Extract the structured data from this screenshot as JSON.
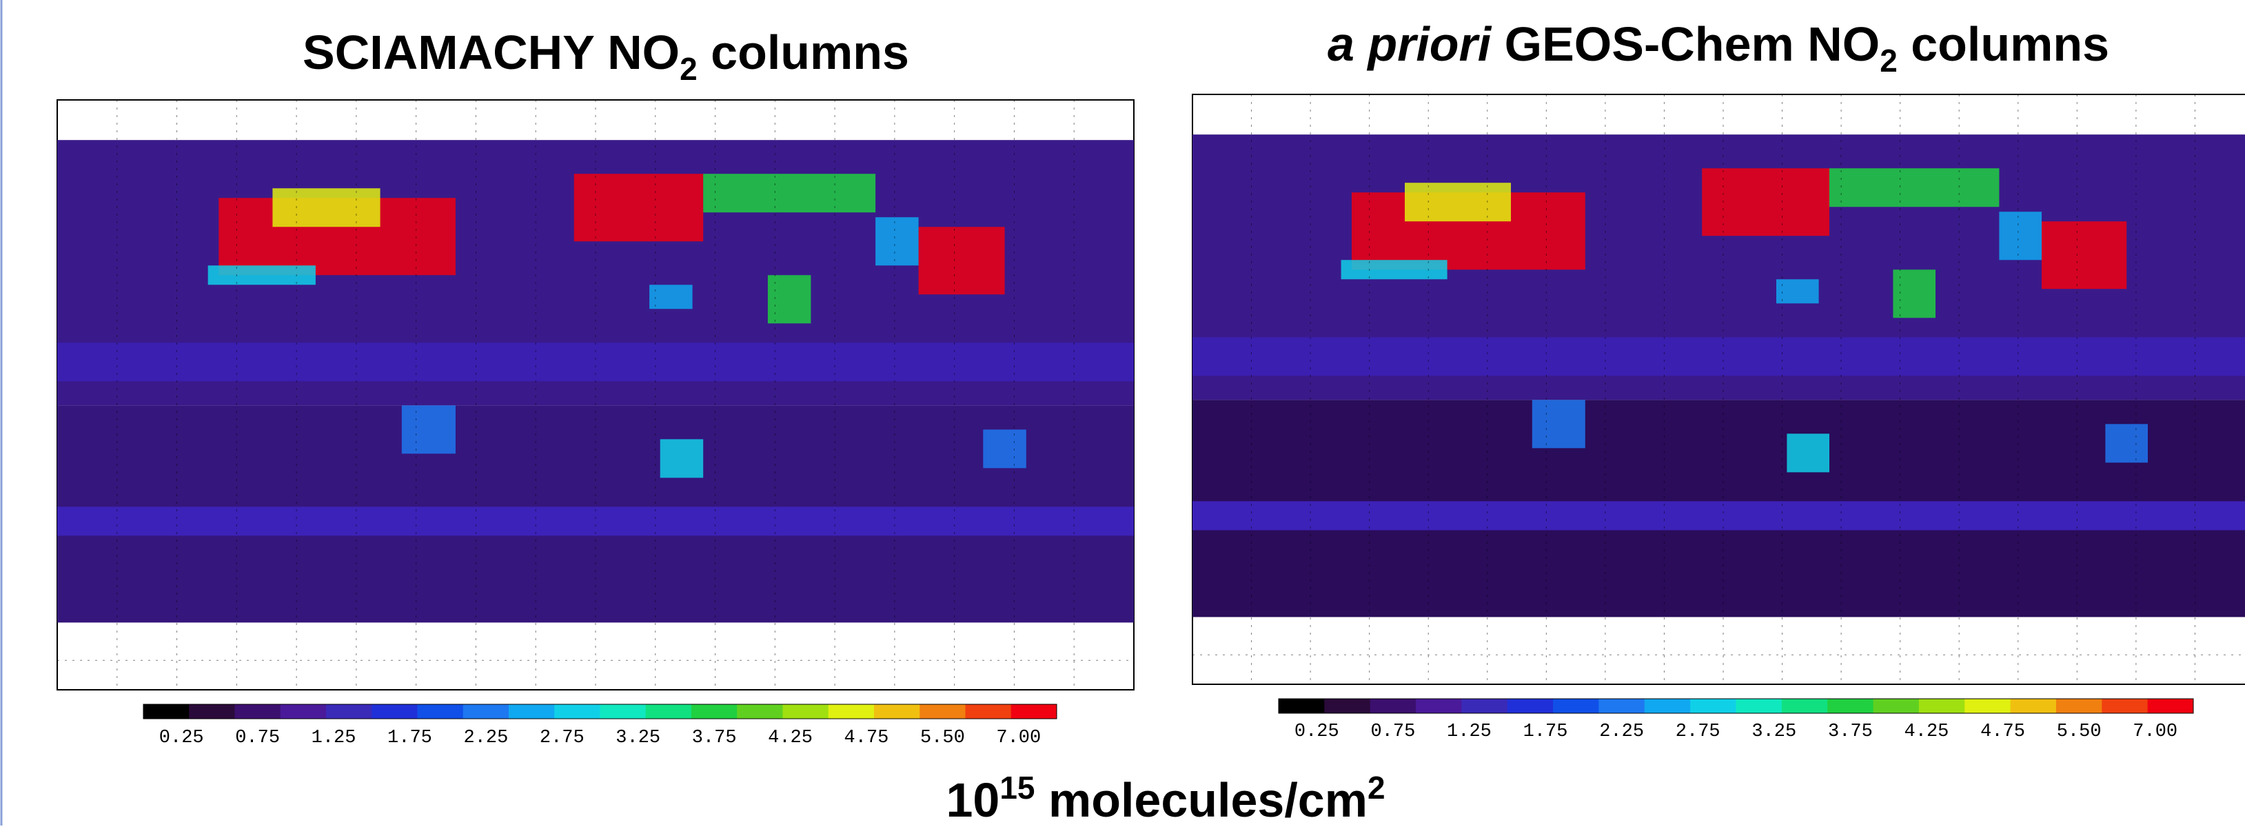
{
  "left": {
    "title": {
      "text": "SCIAMACHY NO",
      "sub": "2",
      "tail": " columns"
    }
  },
  "right": {
    "title": {
      "italic": "a priori",
      "text": " GEOS-Chem NO",
      "sub": "2",
      "tail": " columns"
    }
  },
  "colorbar": {
    "labels": [
      "0.25",
      "0.75",
      "1.25",
      "1.75",
      "2.25",
      "2.75",
      "3.25",
      "3.75",
      "4.25",
      "4.75",
      "5.50",
      "7.00"
    ],
    "colors": [
      "#000000",
      "#2a0a3a",
      "#3b0f6e",
      "#4a1a9a",
      "#3a2ab8",
      "#2030d8",
      "#1050e8",
      "#1e78f0",
      "#10a8f0",
      "#10d0e8",
      "#10e8c0",
      "#10e080",
      "#20d040",
      "#60d020",
      "#a0e010",
      "#e0f010",
      "#f0c010",
      "#f08010",
      "#f04010",
      "#f00010"
    ]
  },
  "unit": {
    "base": "10",
    "exp": "15",
    "text": " molecules/cm",
    "exp2": "2"
  }
}
